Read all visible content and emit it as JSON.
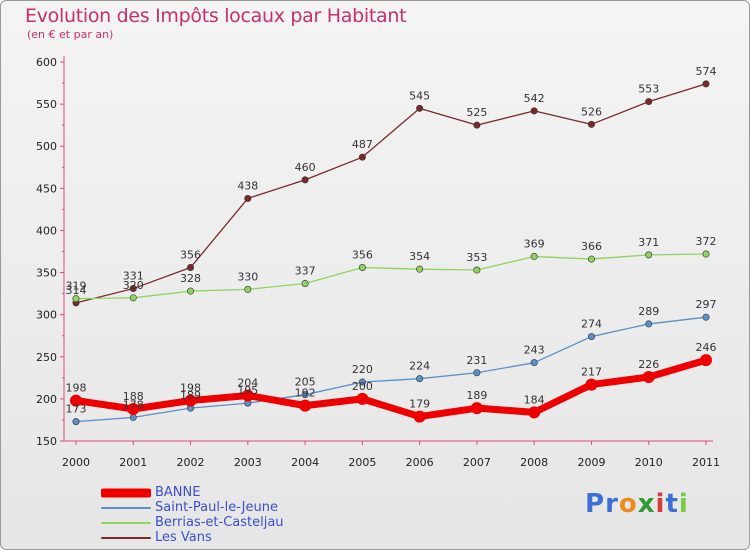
{
  "chart_data": {
    "type": "line",
    "title": "Evolution des Impôts locaux par Habitant",
    "subtitle": "(en € et par an)",
    "xlabel": "",
    "ylabel": "",
    "categories": [
      "2000",
      "2001",
      "2002",
      "2003",
      "2004",
      "2005",
      "2006",
      "2007",
      "2008",
      "2009",
      "2010",
      "2011"
    ],
    "ylim": [
      150,
      600
    ],
    "yticks": [
      150,
      200,
      250,
      300,
      350,
      400,
      450,
      500,
      550,
      600
    ],
    "grid": false,
    "series": [
      {
        "name": "BANNE",
        "color": "#ee0000",
        "values": [
          198,
          188,
          198,
          204,
          192,
          200,
          179,
          189,
          184,
          217,
          226,
          246
        ]
      },
      {
        "name": "Saint-Paul-le-Jeune",
        "color": "#5b8fc8",
        "values": [
          173,
          178,
          189,
          195,
          205,
          220,
          224,
          231,
          243,
          274,
          289,
          297
        ]
      },
      {
        "name": "Berrias-et-Casteljau",
        "color": "#8fd460",
        "values": [
          319,
          320,
          328,
          330,
          337,
          356,
          354,
          353,
          369,
          366,
          371,
          372
        ]
      },
      {
        "name": "Les Vans",
        "color": "#7a2a2a",
        "values": [
          314,
          331,
          356,
          438,
          460,
          487,
          545,
          525,
          542,
          526,
          553,
          574
        ]
      }
    ]
  },
  "logo": {
    "letters": [
      "P",
      "r",
      "o",
      "x",
      "i",
      "t",
      "i"
    ],
    "colors": [
      "#3d6fd6",
      "#3d6fd6",
      "#f08a1c",
      "#2f9a2f",
      "#d63a3a",
      "#3d6fd6",
      "#7ac943"
    ]
  }
}
